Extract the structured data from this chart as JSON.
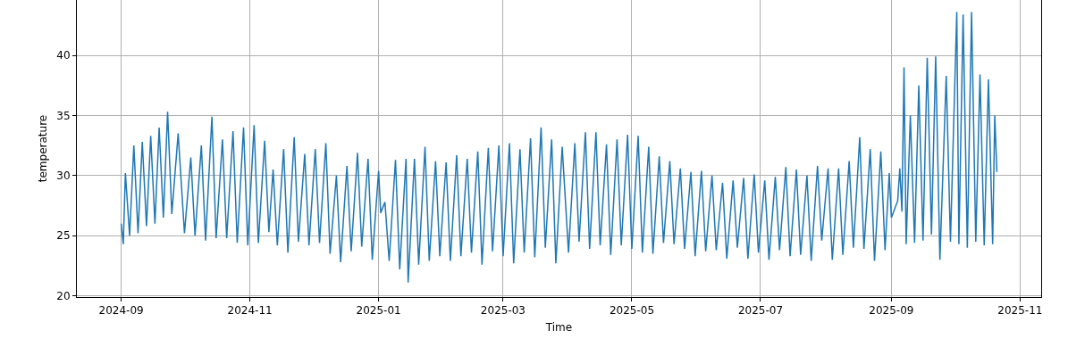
{
  "chart_data": {
    "type": "line",
    "xlabel": "Time",
    "ylabel": "temperature",
    "xlim": [
      "2024-08-11",
      "2025-11-11"
    ],
    "ylim": [
      19.9,
      44.6
    ],
    "xticks": [
      "2024-09",
      "2024-11",
      "2025-01",
      "2025-03",
      "2025-05",
      "2025-07",
      "2025-09",
      "2025-11"
    ],
    "yticks": [
      20,
      25,
      30,
      35,
      40
    ],
    "grid": true,
    "marker": "none",
    "line_style": "solid",
    "x": [
      "2024-09-01",
      "2024-09-02",
      "2024-09-03",
      "2024-09-05",
      "2024-09-07",
      "2024-09-09",
      "2024-09-11",
      "2024-09-13",
      "2024-09-15",
      "2024-09-17",
      "2024-09-19",
      "2024-09-21",
      "2024-09-23",
      "2024-09-25",
      "2024-09-28",
      "2024-10-01",
      "2024-10-04",
      "2024-10-06",
      "2024-10-09",
      "2024-10-11",
      "2024-10-14",
      "2024-10-16",
      "2024-10-19",
      "2024-10-21",
      "2024-10-24",
      "2024-10-26",
      "2024-10-29",
      "2024-10-31",
      "2024-11-03",
      "2024-11-05",
      "2024-11-08",
      "2024-11-10",
      "2024-11-12",
      "2024-11-14",
      "2024-11-17",
      "2024-11-19",
      "2024-11-22",
      "2024-11-24",
      "2024-11-27",
      "2024-11-29",
      "2024-12-02",
      "2024-12-04",
      "2024-12-07",
      "2024-12-09",
      "2024-12-12",
      "2024-12-14",
      "2024-12-17",
      "2024-12-19",
      "2024-12-22",
      "2024-12-24",
      "2024-12-27",
      "2024-12-29",
      "2025-01-01",
      "2025-01-02",
      "2025-01-04",
      "2025-01-06",
      "2025-01-09",
      "2025-01-11",
      "2025-01-14",
      "2025-01-15",
      "2025-01-18",
      "2025-01-20",
      "2025-01-23",
      "2025-01-25",
      "2025-01-28",
      "2025-01-30",
      "2025-02-02",
      "2025-02-04",
      "2025-02-07",
      "2025-02-09",
      "2025-02-12",
      "2025-02-14",
      "2025-02-17",
      "2025-02-19",
      "2025-02-22",
      "2025-02-24",
      "2025-02-27",
      "2025-03-01",
      "2025-03-04",
      "2025-03-06",
      "2025-03-09",
      "2025-03-11",
      "2025-03-14",
      "2025-03-16",
      "2025-03-19",
      "2025-03-21",
      "2025-03-24",
      "2025-03-26",
      "2025-03-29",
      "2025-04-01",
      "2025-04-04",
      "2025-04-06",
      "2025-04-09",
      "2025-04-11",
      "2025-04-14",
      "2025-04-16",
      "2025-04-19",
      "2025-04-21",
      "2025-04-24",
      "2025-04-26",
      "2025-04-29",
      "2025-05-01",
      "2025-05-04",
      "2025-05-06",
      "2025-05-09",
      "2025-05-11",
      "2025-05-14",
      "2025-05-16",
      "2025-05-19",
      "2025-05-21",
      "2025-05-24",
      "2025-05-26",
      "2025-05-29",
      "2025-05-31",
      "2025-06-03",
      "2025-06-05",
      "2025-06-08",
      "2025-06-10",
      "2025-06-13",
      "2025-06-15",
      "2025-06-18",
      "2025-06-20",
      "2025-06-23",
      "2025-06-25",
      "2025-06-28",
      "2025-06-30",
      "2025-07-03",
      "2025-07-05",
      "2025-07-08",
      "2025-07-10",
      "2025-07-13",
      "2025-07-15",
      "2025-07-18",
      "2025-07-20",
      "2025-07-23",
      "2025-07-25",
      "2025-07-28",
      "2025-07-30",
      "2025-08-02",
      "2025-08-04",
      "2025-08-07",
      "2025-08-09",
      "2025-08-12",
      "2025-08-14",
      "2025-08-17",
      "2025-08-19",
      "2025-08-22",
      "2025-08-24",
      "2025-08-27",
      "2025-08-29",
      "2025-08-31",
      "2025-09-01",
      "2025-09-04",
      "2025-09-05",
      "2025-09-06",
      "2025-09-07",
      "2025-09-08",
      "2025-09-10",
      "2025-09-12",
      "2025-09-14",
      "2025-09-16",
      "2025-09-18",
      "2025-09-20",
      "2025-09-22",
      "2025-09-24",
      "2025-09-27",
      "2025-09-29",
      "2025-10-02",
      "2025-10-03",
      "2025-10-05",
      "2025-10-07",
      "2025-10-09",
      "2025-10-11",
      "2025-10-13",
      "2025-10-15",
      "2025-10-17",
      "2025-10-19",
      "2025-10-20",
      "2025-10-21"
    ],
    "series": [
      {
        "color": "#1f77b4",
        "values": [
          26,
          24.3,
          30.2,
          25,
          32.5,
          25.2,
          32.8,
          25.8,
          33.3,
          26,
          34,
          26.5,
          35.3,
          26.8,
          33.5,
          25.2,
          31.5,
          25,
          32.5,
          24.6,
          34.9,
          24.8,
          33,
          24.8,
          33.7,
          24.4,
          34,
          24.2,
          34.2,
          24.4,
          32.9,
          25.3,
          30.5,
          24.2,
          32.2,
          23.6,
          33.2,
          24.5,
          31.8,
          24.2,
          32.2,
          24.4,
          32.7,
          23.5,
          30,
          22.8,
          30.8,
          23.7,
          31.9,
          24.1,
          31.4,
          23,
          30.4,
          26.9,
          27.8,
          22.9,
          31.3,
          22.2,
          31.4,
          21.1,
          31.4,
          22.6,
          32.4,
          22.9,
          31.2,
          23.3,
          31.1,
          22.9,
          31.7,
          23.3,
          31.4,
          23.6,
          32,
          22.6,
          32.3,
          23.7,
          32.5,
          23.3,
          32.7,
          22.7,
          32.2,
          23.6,
          33.1,
          23.2,
          34,
          24,
          33,
          22.7,
          32.4,
          23.6,
          32.7,
          24.5,
          33.6,
          23.9,
          33.6,
          24.2,
          32.6,
          23.4,
          33,
          24.2,
          33.4,
          23.9,
          33.3,
          23.6,
          32.4,
          23.5,
          31.6,
          24.4,
          31.2,
          24.3,
          30.6,
          23.9,
          30.3,
          23.3,
          30.4,
          23.7,
          30,
          23.8,
          29.4,
          23.1,
          29.6,
          24,
          29.8,
          23.1,
          30.1,
          23.6,
          29.6,
          23,
          29.9,
          23.8,
          30.7,
          23.3,
          30.5,
          23.4,
          30,
          22.9,
          30.8,
          24.6,
          30.6,
          23,
          30.6,
          23.4,
          31.2,
          24,
          33.2,
          23.9,
          32.2,
          22.9,
          32,
          23.8,
          30.2,
          26.5,
          27.9,
          30.6,
          27,
          39,
          24.3,
          35,
          24.4,
          37.5,
          24.6,
          39.8,
          25.1,
          39.9,
          23,
          38.3,
          24.5,
          43.6,
          24.3,
          43.4,
          24,
          43.6,
          24.5,
          38.4,
          24.2,
          38,
          24.3,
          35,
          30.3
        ]
      }
    ]
  }
}
